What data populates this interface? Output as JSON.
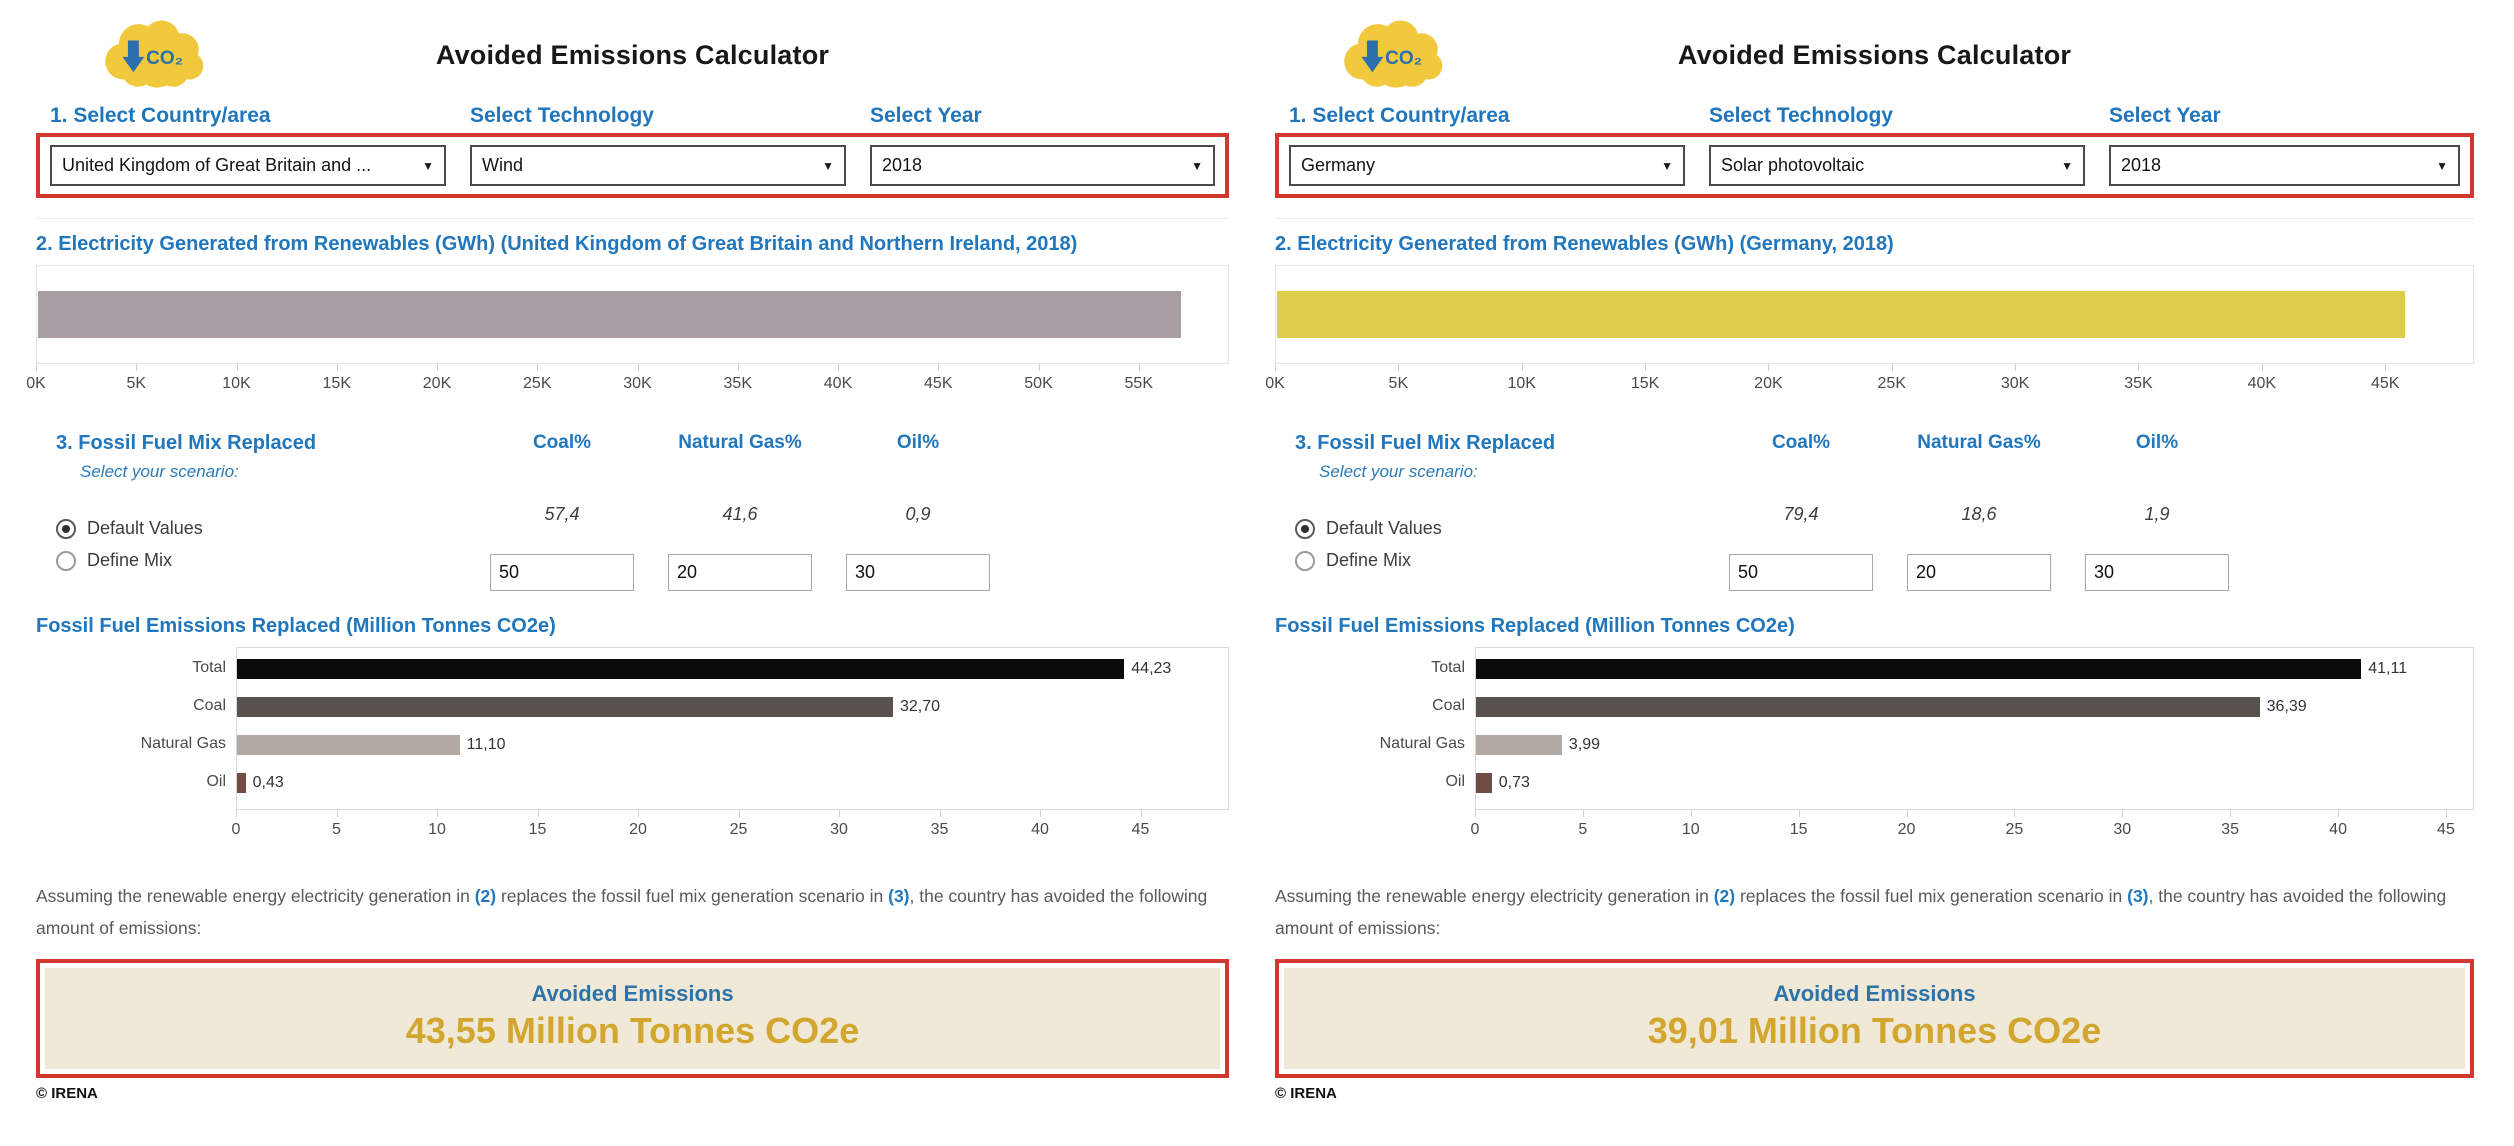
{
  "colors": {
    "accent_blue": "#2176BC",
    "highlight_red": "#D23730",
    "result_gold": "#D2A62F",
    "result_beige": "#F1E9D7",
    "icon_yellow": "#F2C83C",
    "icon_blue": "#2B6FAC"
  },
  "icon": {
    "co2_label": "CO₂"
  },
  "panels": [
    {
      "title": "Avoided Emissions Calculator",
      "selectors": {
        "country_label": "1. Select Country/area",
        "technology_label": "Select Technology",
        "year_label": "Select Year",
        "country_value": "United Kingdom of Great Britain and ...",
        "technology_value": "Wind",
        "year_value": "2018"
      },
      "fuel_mix": {
        "heading": "3. Fossil Fuel Mix Replaced",
        "subheading": "Select your scenario:",
        "options": [
          "Default Values",
          "Define Mix"
        ],
        "selected_option": "Default Values",
        "columns": [
          "Coal%",
          "Natural Gas%",
          "Oil%"
        ],
        "default_values": [
          "57,4",
          "41,6",
          "0,9"
        ],
        "mix_inputs": [
          "50",
          "20",
          "30"
        ]
      },
      "assumption": {
        "pre": "Assuming the renewable energy electricity generation in ",
        "ref2": "(2)",
        "mid": " replaces the fossil fuel mix generation scenario in ",
        "ref3": "(3)",
        "post": ", the country has avoided the following amount of emissions:"
      },
      "result": {
        "label": "Avoided Emissions",
        "value": "43,55 Million Tonnes CO2e"
      },
      "footer": "© IRENA"
    },
    {
      "title": "Avoided Emissions Calculator",
      "selectors": {
        "country_label": "1. Select Country/area",
        "technology_label": "Select Technology",
        "year_label": "Select Year",
        "country_value": "Germany",
        "technology_value": "Solar photovoltaic",
        "year_value": "2018"
      },
      "fuel_mix": {
        "heading": "3. Fossil Fuel Mix Replaced",
        "subheading": "Select your scenario:",
        "options": [
          "Default Values",
          "Define Mix"
        ],
        "selected_option": "Default Values",
        "columns": [
          "Coal%",
          "Natural Gas%",
          "Oil%"
        ],
        "default_values": [
          "79,4",
          "18,6",
          "1,9"
        ],
        "mix_inputs": [
          "50",
          "20",
          "30"
        ]
      },
      "assumption": {
        "pre": "Assuming the renewable energy electricity generation in ",
        "ref2": "(2)",
        "mid": " replaces the fossil fuel mix generation scenario in ",
        "ref3": "(3)",
        "post": ", the country has avoided the following amount of emissions:"
      },
      "result": {
        "label": "Avoided Emissions",
        "value": "39,01 Million Tonnes CO2e"
      },
      "footer": "© IRENA"
    }
  ],
  "chart_data": [
    {
      "type": "bar",
      "variant": "single_bar",
      "orientation": "horizontal",
      "title": "2. Electricity Generated from Renewables (GWh) (United Kingdom of Great Britain and Northern Ireland, 2018)",
      "categories": [
        "Electricity generated from renewables"
      ],
      "values": [
        57100
      ],
      "unit": "GWh",
      "bar_color": "#A89DA3",
      "xticks": [
        0,
        5000,
        10000,
        15000,
        20000,
        25000,
        30000,
        35000,
        40000,
        45000,
        50000,
        55000
      ],
      "xtick_labels": [
        "0K",
        "5K",
        "10K",
        "15K",
        "20K",
        "25K",
        "30K",
        "35K",
        "40K",
        "45K",
        "50K",
        "55K"
      ],
      "xlim": [
        0,
        59500
      ],
      "grid": false,
      "legend": false
    },
    {
      "type": "bar",
      "variant": "category_bars",
      "orientation": "horizontal",
      "title": "Fossil Fuel Emissions Replaced (Million Tonnes CO2e)",
      "categories": [
        "Total",
        "Coal",
        "Natural Gas",
        "Oil"
      ],
      "values": [
        44.23,
        32.7,
        11.1,
        0.43
      ],
      "value_labels": [
        "44,23",
        "32,70",
        "11,10",
        "0,43"
      ],
      "unit": "Million Tonnes CO2e",
      "bar_colors": [
        "#0B0B0B",
        "#59514D",
        "#B2A9A3",
        "#6F4B43"
      ],
      "xticks": [
        0,
        5,
        10,
        15,
        20,
        25,
        30,
        35,
        40,
        45
      ],
      "xtick_labels": [
        "0",
        "5",
        "10",
        "15",
        "20",
        "25",
        "30",
        "35",
        "40",
        "45"
      ],
      "xlim": [
        0,
        49.4
      ],
      "grid": false,
      "legend": false
    },
    {
      "type": "bar",
      "variant": "single_bar",
      "orientation": "horizontal",
      "title": "2. Electricity Generated from Renewables (GWh) (Germany, 2018)",
      "categories": [
        "Electricity generated from renewables"
      ],
      "values": [
        45800
      ],
      "unit": "GWh",
      "bar_color": "#DECC4B",
      "xticks": [
        0,
        5000,
        10000,
        15000,
        20000,
        25000,
        30000,
        35000,
        40000,
        45000
      ],
      "xtick_labels": [
        "0K",
        "5K",
        "10K",
        "15K",
        "20K",
        "25K",
        "30K",
        "35K",
        "40K",
        "45K"
      ],
      "xlim": [
        0,
        48600
      ],
      "grid": false,
      "legend": false
    },
    {
      "type": "bar",
      "variant": "category_bars",
      "orientation": "horizontal",
      "title": "Fossil Fuel Emissions Replaced (Million Tonnes CO2e)",
      "categories": [
        "Total",
        "Coal",
        "Natural Gas",
        "Oil"
      ],
      "values": [
        41.11,
        36.39,
        3.99,
        0.73
      ],
      "value_labels": [
        "41,11",
        "36,39",
        "3,99",
        "0,73"
      ],
      "unit": "Million Tonnes CO2e",
      "bar_colors": [
        "#0B0B0B",
        "#59514D",
        "#B2A9A3",
        "#6F4B43"
      ],
      "xticks": [
        0,
        5,
        10,
        15,
        20,
        25,
        30,
        35,
        40,
        45
      ],
      "xtick_labels": [
        "0",
        "5",
        "10",
        "15",
        "20",
        "25",
        "30",
        "35",
        "40",
        "45"
      ],
      "xlim": [
        0,
        46.3
      ],
      "grid": false,
      "legend": false
    }
  ]
}
